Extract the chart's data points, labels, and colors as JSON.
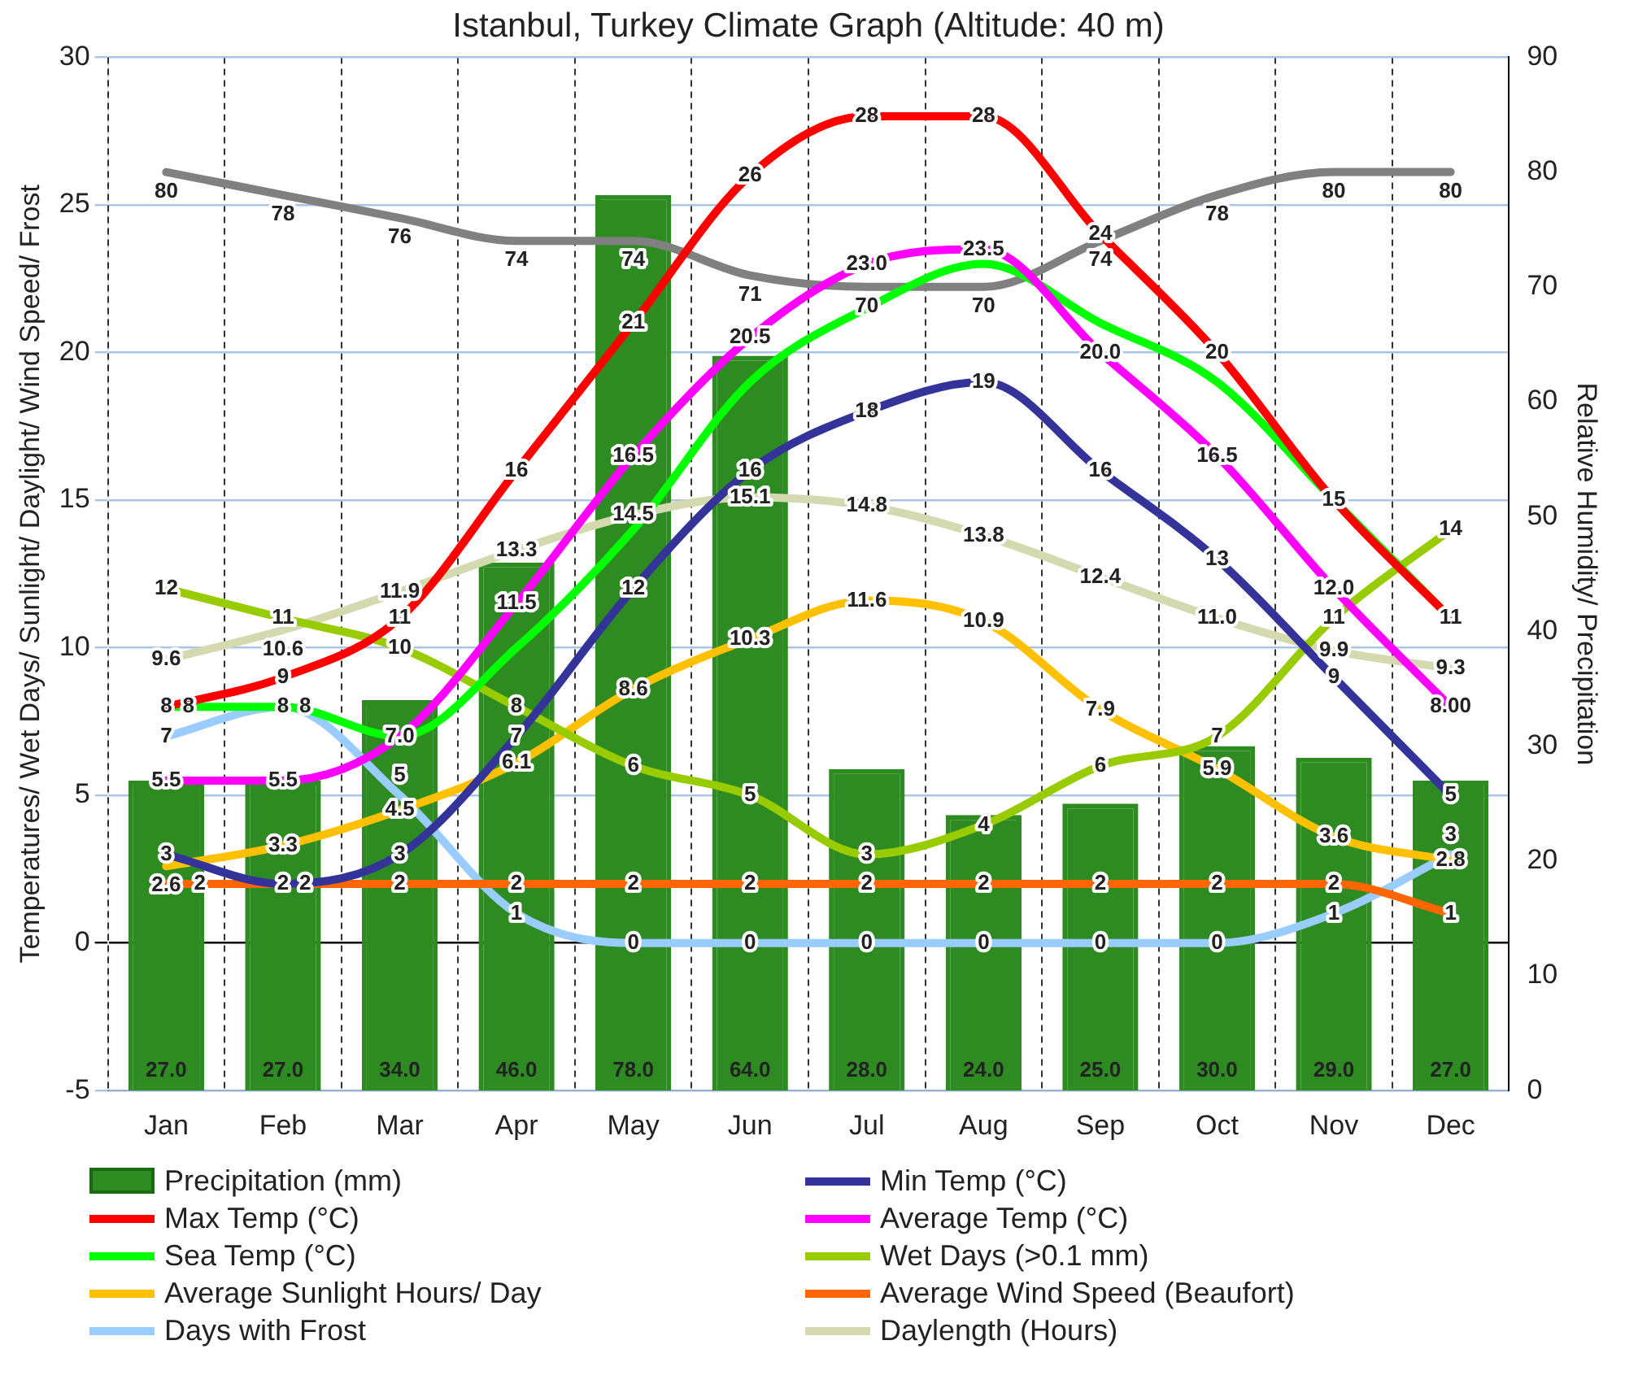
{
  "chart_data": {
    "type": "line",
    "title": "Istanbul, Turkey Climate Graph (Altitude: 40 m)",
    "ylabel": "Temperatures/ Wet Days/ Sunlight/ Daylight/ Wind Speed/ Frost",
    "y2label": "Relative Humidity/ Precipitation",
    "categories": [
      "Jan",
      "Feb",
      "Mar",
      "Apr",
      "May",
      "Jun",
      "Jul",
      "Aug",
      "Sep",
      "Oct",
      "Nov",
      "Dec"
    ],
    "ylim": [
      -5,
      30
    ],
    "yticks": [
      -5,
      0,
      5,
      10,
      15,
      20,
      25,
      30
    ],
    "y2lim": [
      0,
      90
    ],
    "y2ticks": [
      0,
      10,
      20,
      30,
      40,
      50,
      60,
      70,
      80,
      90
    ],
    "grid": true,
    "legend": "bottom",
    "marker": "none",
    "series": [
      {
        "name": "Precipitation (mm)",
        "type": "bar",
        "axis": "y2",
        "color": "#2e8b22",
        "values": [
          27,
          27,
          34,
          46,
          78,
          64,
          28,
          24,
          25,
          30,
          29,
          27
        ],
        "value_labels": [
          "27.0",
          "27.0",
          "34.0",
          "46.0",
          "78.0",
          "64.0",
          "28.0",
          "24.0",
          "25.0",
          "30.0",
          "29.0",
          "27.0"
        ]
      },
      {
        "name": "Min Temp (°C)",
        "color": "#333399",
        "values": [
          3,
          2,
          3,
          7,
          12,
          16,
          18,
          19,
          16,
          13,
          9,
          5
        ],
        "value_labels": [
          "3",
          "2",
          "3",
          "7",
          "12",
          "16",
          "18",
          "19",
          "16",
          "13",
          "9",
          "5"
        ]
      },
      {
        "name": "Max Temp (°C)",
        "color": "#ff0000",
        "values": [
          8,
          9,
          11,
          16,
          21,
          26,
          28,
          28,
          24,
          20,
          15,
          11
        ],
        "value_labels": [
          "8",
          "9",
          "11",
          "16",
          "21",
          "26",
          "28",
          "28",
          "24",
          "20",
          "15",
          null
        ]
      },
      {
        "name": "Average Temp (°C)",
        "color": "#ff00ff",
        "values": [
          5.5,
          5.5,
          7,
          11.5,
          16.5,
          20.5,
          23,
          23.5,
          20,
          16.5,
          12,
          8
        ],
        "value_labels": [
          "5.5",
          "5.5",
          "7.0",
          "11.5",
          "16.5",
          "20.5",
          "23.0",
          "23.5",
          "20.0",
          "16.5",
          "12.0",
          "8.00"
        ]
      },
      {
        "name": "Sea Temp (°C)",
        "color": "#00ff00",
        "values": [
          8,
          8,
          7,
          10,
          14,
          19,
          21.5,
          23,
          21,
          19,
          15,
          11
        ],
        "value_labels": [
          "8",
          "8",
          null,
          null,
          null,
          null,
          null,
          null,
          null,
          null,
          null,
          "11"
        ]
      },
      {
        "name": "Wet Days (>0.1 mm)",
        "color": "#99cc00",
        "values": [
          12,
          11,
          10,
          8,
          6,
          5,
          3,
          4,
          6,
          7,
          11,
          14
        ],
        "value_labels": [
          "12",
          "11",
          "10",
          "8",
          "6",
          "5",
          "3",
          "4",
          "6",
          "7",
          "11",
          "14"
        ]
      },
      {
        "name": "Average Sunlight Hours/ Day",
        "color": "#ffc000",
        "values": [
          2.6,
          3.3,
          4.5,
          6.1,
          8.6,
          10.3,
          11.6,
          10.9,
          7.9,
          5.9,
          3.6,
          2.8
        ],
        "value_labels": [
          "2.6",
          "3.3",
          "4.5",
          "6.1",
          "8.6",
          "10.3",
          "11.6",
          "10.9",
          "7.9",
          "5.9",
          "3.6",
          "2.8"
        ]
      },
      {
        "name": "Average Wind Speed (Beaufort)",
        "color": "#ff6600",
        "values": [
          2,
          2,
          2,
          2,
          2,
          2,
          2,
          2,
          2,
          2,
          2,
          1
        ],
        "value_labels": [
          "2",
          "2",
          "2",
          "2",
          "2",
          "2",
          "2",
          "2",
          "2",
          "2",
          "2",
          "1"
        ]
      },
      {
        "name": "Days with Frost",
        "color": "#99ccff",
        "values": [
          7,
          8,
          5,
          1,
          0,
          0,
          0,
          0,
          0,
          0,
          1,
          3
        ],
        "value_labels": [
          "7",
          "8",
          "5",
          "1",
          "0",
          "0",
          "0",
          "0",
          "0",
          "0",
          "1",
          "3"
        ]
      },
      {
        "name": "Daylength (Hours)",
        "color": "#d4d9b0",
        "values": [
          9.6,
          10.6,
          11.9,
          13.3,
          14.5,
          15.1,
          14.8,
          13.8,
          12.4,
          11.0,
          9.9,
          9.3
        ],
        "value_labels": [
          "9.6",
          "10.6",
          "11.9",
          "13.3",
          "14.5",
          "15.1",
          "14.8",
          "13.8",
          "12.4",
          "11.0",
          "9.9",
          "9.3"
        ]
      },
      {
        "axis": "y2",
        "color": "#808080",
        "values": [
          80,
          78,
          76,
          74,
          74,
          71,
          70,
          70,
          74,
          78,
          80,
          80
        ],
        "value_labels": [
          "80",
          "78",
          "76",
          "74",
          "74",
          "71",
          "70",
          "70",
          "74",
          "78",
          "80",
          "80"
        ]
      }
    ]
  }
}
